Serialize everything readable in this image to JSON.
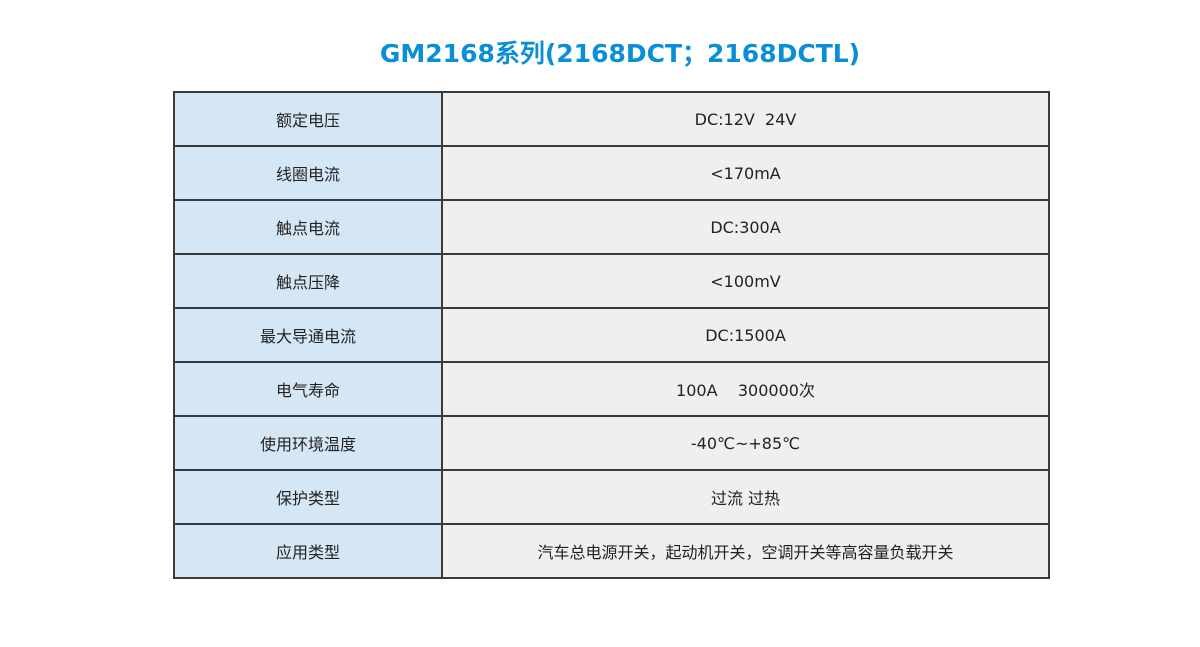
{
  "title": "GM2168系列(2168DCT；2168DCTL)",
  "colors": {
    "title": "#0a8fd6",
    "label_bg": "#d5e7f5",
    "value_bg": "#efefef",
    "border": "#3a3a3a"
  },
  "rows": [
    {
      "label": "额定电压",
      "value": "DC:12V  24V"
    },
    {
      "label": "线圈电流",
      "value": "<170mA"
    },
    {
      "label": "触点电流",
      "value": "DC:300A"
    },
    {
      "label": "触点压降",
      "value": "<100mV"
    },
    {
      "label": "最大导通电流",
      "value": "DC:1500A"
    },
    {
      "label": "电气寿命",
      "value": "100A    300000次"
    },
    {
      "label": "使用环境温度",
      "value": "-40℃~+85℃"
    },
    {
      "label": "保护类型",
      "value": "过流 过热"
    },
    {
      "label": "应用类型",
      "value": "汽车总电源开关，起动机开关，空调开关等高容量负载开关"
    }
  ]
}
